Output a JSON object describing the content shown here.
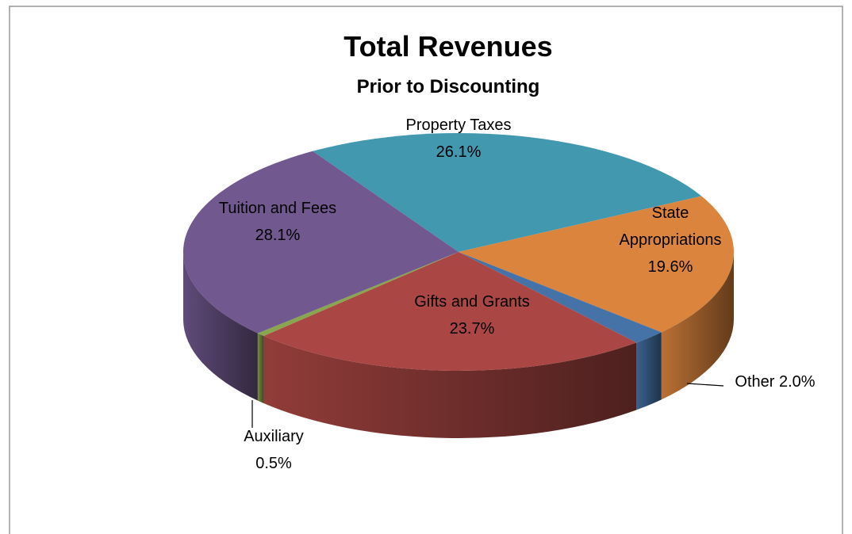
{
  "chart_data": {
    "type": "pie",
    "title": "Total Revenues",
    "subtitle": "Prior to Discounting",
    "categories": [
      "Property Taxes",
      "State Appropriations",
      "Other",
      "Gifts and Grants",
      "Auxiliary",
      "Tuition and Fees"
    ],
    "values": [
      26.1,
      19.6,
      2.0,
      23.7,
      0.5,
      28.1
    ],
    "value_labels": [
      "26.1%",
      "19.6%",
      "2.0%",
      "23.7%",
      "0.5%",
      "28.1%"
    ],
    "colors": [
      "#4198AF",
      "#DB843D",
      "#4572A7",
      "#AA4643",
      "#89A54E",
      "#71588F"
    ]
  }
}
